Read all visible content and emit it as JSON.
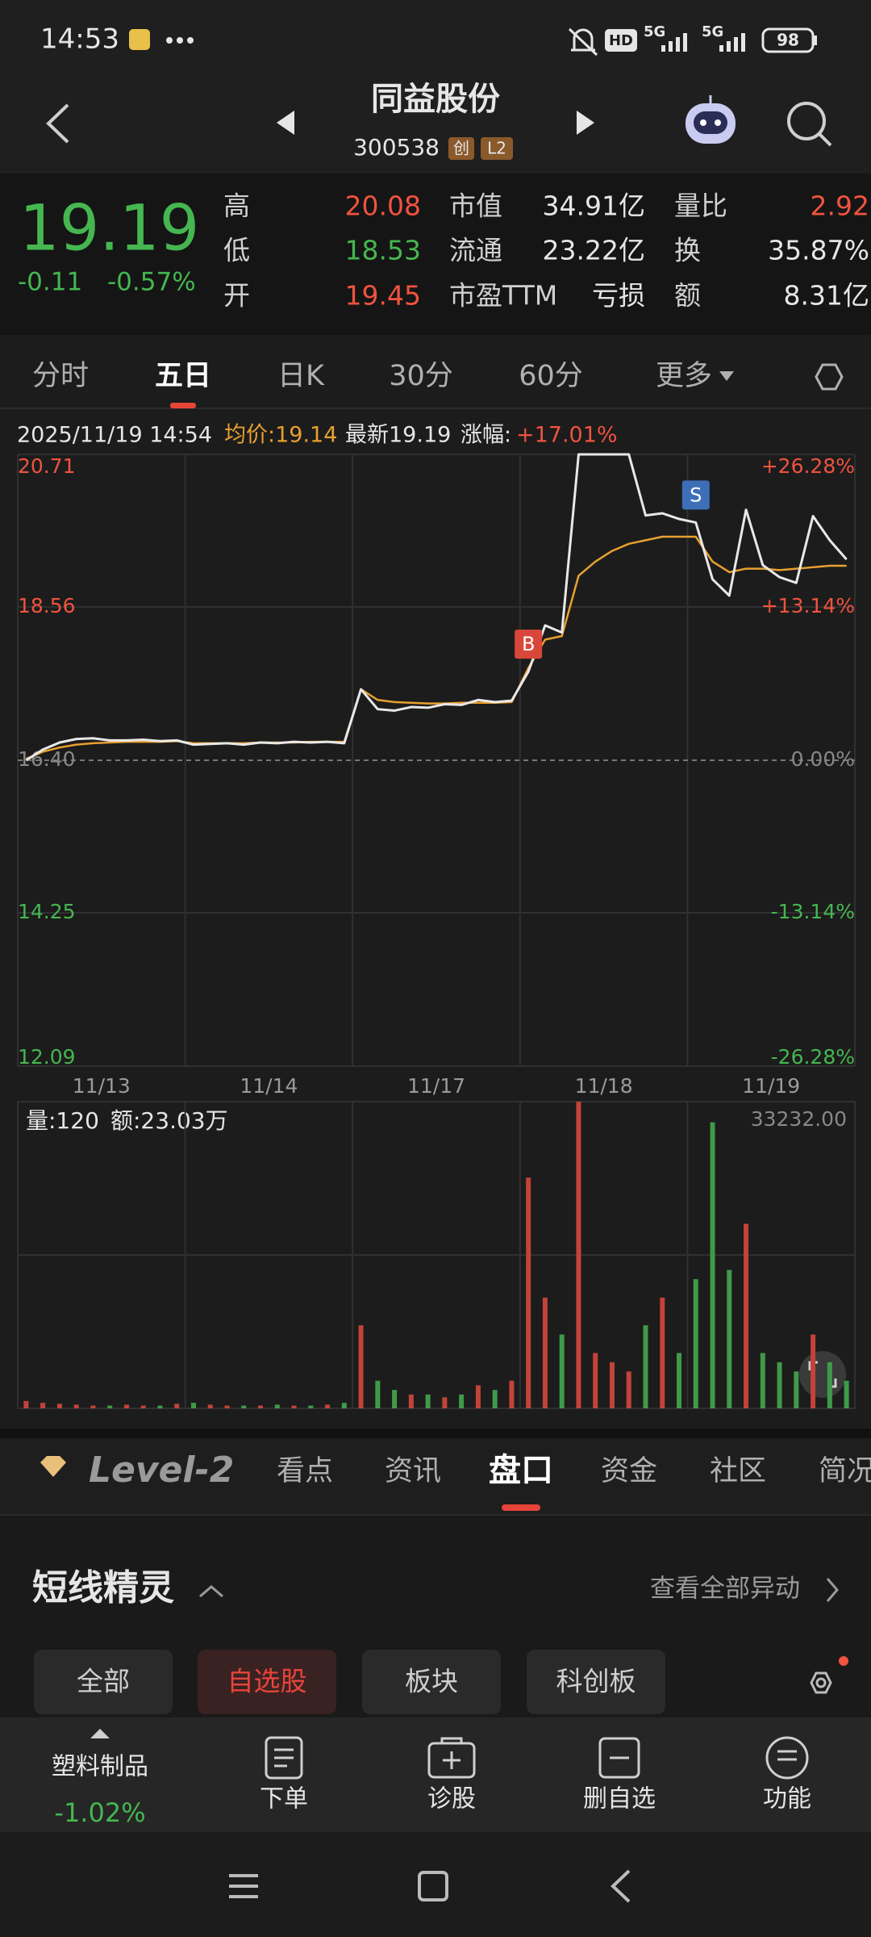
{
  "status_bar": {
    "time": "14:53",
    "hd": "HD",
    "network": "5G",
    "battery": "98"
  },
  "header": {
    "title": "同益股份",
    "code": "300538",
    "badges": [
      "创",
      "L2"
    ]
  },
  "quote": {
    "price": "19.19",
    "change": "-0.11",
    "change_pct": "-0.57%",
    "stats": [
      [
        {
          "label": "高",
          "value": "20.08",
          "color": "#f0533f"
        },
        {
          "label": "低",
          "value": "18.53",
          "color": "#45b650"
        },
        {
          "label": "开",
          "value": "19.45",
          "color": "#f0533f"
        }
      ],
      [
        {
          "label": "市值",
          "value": "34.91亿",
          "color": "#e6e6e6"
        },
        {
          "label": "流通",
          "value": "23.22亿",
          "color": "#e6e6e6"
        },
        {
          "label": "市盈TTM",
          "value": "亏损",
          "color": "#e6e6e6"
        }
      ],
      [
        {
          "label": "量比",
          "value": "2.92",
          "color": "#f0533f"
        },
        {
          "label": "换",
          "value": "35.87%",
          "color": "#e6e6e6"
        },
        {
          "label": "额",
          "value": "8.31亿",
          "color": "#e6e6e6"
        }
      ]
    ]
  },
  "tabs": {
    "items": [
      "分时",
      "五日",
      "日K",
      "30分",
      "60分",
      "更多"
    ],
    "selected": 1
  },
  "chart": {
    "type": "line",
    "info": {
      "datetime": "2025/11/19 14:54",
      "avg": "均价:19.14",
      "latest": "最新19.19",
      "change_label": "涨幅:",
      "change": "+17.01%"
    },
    "dates": [
      "11/13",
      "11/14",
      "11/17",
      "11/18",
      "11/19"
    ],
    "ylim": [
      12.09,
      20.71
    ],
    "yticks": [
      20.71,
      18.56,
      {
        "value": 16.4,
        "label": "16.40"
      },
      14.25,
      12.09
    ],
    "pct_labels": [
      "+26.28%",
      "+13.14%",
      "0.00%",
      "-13.14%",
      "-26.28%"
    ],
    "grid": true,
    "series": [
      {
        "name": "最新",
        "color": "#e8e8e8",
        "values": [
          16.4,
          16.55,
          16.65,
          16.7,
          16.71,
          16.68,
          16.68,
          16.69,
          16.67,
          16.68,
          16.62,
          16.63,
          16.64,
          16.62,
          16.65,
          16.64,
          16.66,
          16.65,
          16.66,
          16.64,
          17.4,
          17.12,
          17.1,
          17.15,
          17.14,
          17.19,
          17.18,
          17.25,
          17.22,
          17.24,
          17.65,
          18.3,
          18.2,
          20.71,
          20.71,
          20.71,
          20.71,
          19.85,
          19.88,
          19.8,
          19.75,
          18.95,
          18.72,
          19.93,
          19.15,
          18.98,
          18.9,
          19.84,
          19.5,
          19.23
        ]
      },
      {
        "name": "均价",
        "color": "#e8a030",
        "values": [
          16.42,
          16.52,
          16.58,
          16.62,
          16.64,
          16.65,
          16.66,
          16.66,
          16.66,
          16.67,
          16.64,
          16.64,
          16.64,
          16.64,
          16.65,
          16.65,
          16.65,
          16.66,
          16.66,
          16.66,
          17.4,
          17.25,
          17.22,
          17.21,
          17.2,
          17.2,
          17.21,
          17.21,
          17.21,
          17.22,
          17.7,
          18.1,
          18.15,
          19.0,
          19.2,
          19.35,
          19.45,
          19.5,
          19.55,
          19.55,
          19.55,
          19.2,
          19.05,
          19.1,
          19.1,
          19.08,
          19.1,
          19.12,
          19.14,
          19.14
        ]
      }
    ],
    "markers": [
      {
        "label": "B",
        "at": 30,
        "color": "#d9473a"
      },
      {
        "label": "S",
        "at": 40,
        "color": "#3d6fb8"
      }
    ]
  },
  "volume": {
    "type": "bar",
    "label": "量:120",
    "amount": "额:23.03万",
    "ylim": [
      0,
      33232
    ],
    "max_label": "33232.00",
    "values": [
      800,
      600,
      500,
      400,
      300,
      300,
      400,
      300,
      300,
      500,
      600,
      400,
      300,
      300,
      300,
      400,
      300,
      300,
      400,
      600,
      9000,
      3000,
      2000,
      1500,
      1500,
      1200,
      1500,
      2500,
      2000,
      3000,
      25000,
      12000,
      8000,
      33232,
      6000,
      5000,
      4000,
      9000,
      12000,
      6000,
      14000,
      31000,
      15000,
      20000,
      6000,
      5000,
      4000,
      8000,
      5000,
      3000
    ]
  },
  "detail_tabs": {
    "brand": "Level-2",
    "items": [
      "看点",
      "资讯",
      "盘口",
      "资金",
      "社区",
      "简况"
    ],
    "selected": 2
  },
  "section": {
    "title": "短线精灵",
    "link": "查看全部异动"
  },
  "chips": {
    "items": [
      "全部",
      "自选股",
      "板块",
      "科创板"
    ],
    "selected": 1
  },
  "bottom_bar": {
    "sector": "塑料制品",
    "sector_change": "-1.02%",
    "items": [
      "下单",
      "诊股",
      "删自选",
      "功能"
    ]
  }
}
